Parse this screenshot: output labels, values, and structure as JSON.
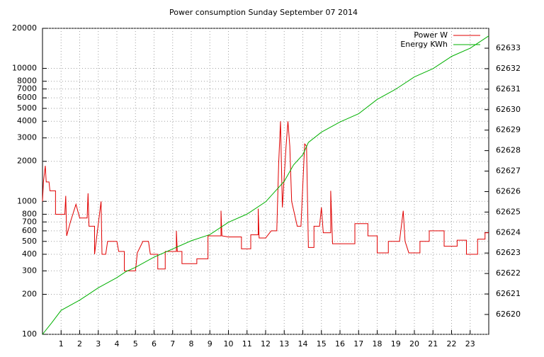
{
  "chart_data": {
    "type": "line",
    "title": "Power consumption Sunday September 07 2014",
    "xlim": [
      0,
      24
    ],
    "xticks": [
      1,
      2,
      3,
      4,
      5,
      6,
      7,
      8,
      9,
      10,
      11,
      12,
      13,
      14,
      15,
      16,
      17,
      18,
      19,
      20,
      21,
      22,
      23
    ],
    "ylim": [
      100,
      20000
    ],
    "ylog": true,
    "yticks": [
      100,
      200,
      300,
      400,
      500,
      600,
      700,
      800,
      1000,
      2000,
      3000,
      4000,
      5000,
      6000,
      7000,
      8000,
      10000,
      20000
    ],
    "y2lim": [
      62619.03,
      62633.97
    ],
    "y2ticks": [
      62620,
      62621,
      62622,
      62623,
      62624,
      62625,
      62626,
      62627,
      62628,
      62629,
      62630,
      62631,
      62632,
      62633
    ],
    "grid": true,
    "legend": "top-right",
    "series": [
      {
        "name": "Power W",
        "color": "#e00000",
        "x": [
          0,
          0.05,
          0.15,
          0.2,
          0.35,
          0.4,
          0.7,
          0.7,
          1.2,
          1.25,
          1.3,
          1.5,
          1.8,
          2,
          2.4,
          2.45,
          2.5,
          2.8,
          2.8,
          3.15,
          3.2,
          3.4,
          3.5,
          4,
          4.1,
          4.4,
          4.4,
          5,
          5.1,
          5.4,
          5.7,
          5.8,
          6.2,
          6.2,
          6.6,
          6.6,
          7.2,
          7.2,
          7.25,
          7.5,
          7.5,
          8.3,
          8.3,
          8.9,
          8.9,
          9.6,
          9.6,
          9.65,
          10,
          10.7,
          10.7,
          11.2,
          11.2,
          11.6,
          11.6,
          11.65,
          12,
          12.3,
          12.6,
          12.7,
          12.8,
          12.9,
          13.1,
          13.2,
          13.3,
          13.4,
          13.7,
          13.9,
          14.1,
          14.2,
          14.3,
          14.6,
          14.6,
          14.9,
          15,
          15.1,
          15.5,
          15.5,
          15.6,
          16.8,
          16.8,
          17.5,
          17.5,
          18,
          18,
          18.6,
          18.6,
          19.2,
          19.4,
          19.5,
          19.7,
          20.3,
          20.3,
          20.8,
          20.8,
          21.6,
          21.6,
          22.3,
          22.3,
          22.8,
          22.8,
          23.4,
          23.4,
          23.8,
          23.8,
          24
        ],
        "values": [
          1000,
          1400,
          1850,
          1400,
          1400,
          1200,
          1200,
          800,
          800,
          1100,
          550,
          700,
          950,
          750,
          750,
          1150,
          650,
          650,
          400,
          1000,
          400,
          400,
          500,
          500,
          420,
          420,
          300,
          300,
          410,
          500,
          500,
          400,
          400,
          310,
          310,
          420,
          420,
          600,
          420,
          420,
          340,
          340,
          370,
          370,
          550,
          550,
          850,
          550,
          540,
          540,
          440,
          440,
          560,
          560,
          880,
          530,
          530,
          600,
          600,
          1900,
          4000,
          900,
          2600,
          4000,
          2600,
          1000,
          650,
          650,
          2700,
          2600,
          450,
          450,
          650,
          650,
          900,
          580,
          580,
          1200,
          480,
          480,
          680,
          680,
          550,
          550,
          410,
          410,
          500,
          500,
          850,
          500,
          410,
          410,
          500,
          500,
          600,
          600,
          460,
          460,
          510,
          510,
          400,
          400,
          520,
          520,
          580,
          580
        ]
      },
      {
        "name": "Energy KWh",
        "color": "#00b000",
        "axis": "y2",
        "x": [
          0,
          0.5,
          1,
          2,
          3,
          4,
          4.5,
          5,
          6,
          7,
          8,
          9,
          10,
          11,
          12,
          12.5,
          13,
          13.5,
          14,
          14.3,
          15,
          16,
          17,
          18,
          19,
          20,
          21,
          22,
          23,
          24
        ],
        "values": [
          62619.03,
          62619.6,
          62620.2,
          62620.7,
          62621.3,
          62621.8,
          62622.1,
          62622.3,
          62622.8,
          62623.2,
          62623.6,
          62623.9,
          62624.5,
          62624.9,
          62625.5,
          62626.0,
          62626.5,
          62627.3,
          62627.8,
          62628.4,
          62628.9,
          62629.4,
          62629.8,
          62630.5,
          62631.0,
          62631.6,
          62632.0,
          62632.6,
          62633.0,
          62633.6
        ]
      }
    ]
  }
}
